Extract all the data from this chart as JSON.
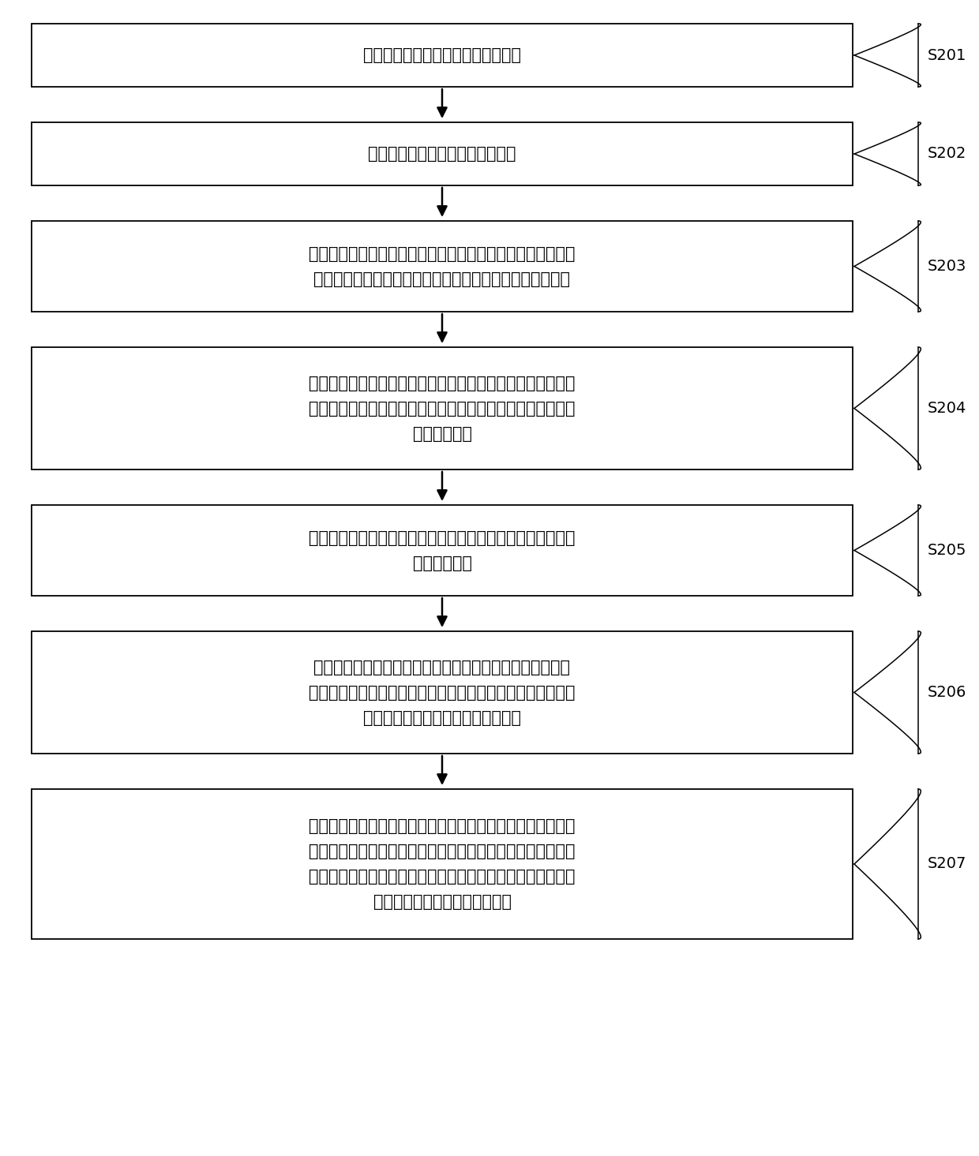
{
  "bg_color": "#ffffff",
  "box_border_color": "#000000",
  "box_fill_color": "#ffffff",
  "text_color": "#000000",
  "arrow_color": "#000000",
  "label_color": "#000000",
  "font_size": 15,
  "label_font_size": 14,
  "boxes": [
    {
      "id": "S201",
      "label": "S201",
      "lines": [
        "获取地层参数、完井参数及施工参数"
      ],
      "n_lines": 1
    },
    {
      "id": "S202",
      "label": "S202",
      "lines": [
        "建立二氧化碳的物性参数计算模型"
      ],
      "n_lines": 1
    },
    {
      "id": "S203",
      "label": "S203",
      "lines": [
        "建立二氧化碳的井筒压力计算模型，该井筒压力计算模型包括",
        "井筒内压力计算方程及二氧化碳流过喷嘴后的压力计算方程"
      ],
      "n_lines": 2
    },
    {
      "id": "S204",
      "label": "S204",
      "lines": [
        "建立二氧化碳的井筒温度计算模型，该井筒压力计算模型包括",
        "井筒内温度计算方程、二氧化碳流过喷嘴后的温度计算方程及",
        "温度混合方程"
      ],
      "n_lines": 3
    },
    {
      "id": "S205",
      "label": "S205",
      "lines": [
        "对井筒内压力计算方程和井筒内压力计算方程进行离散，得到",
        "数値离散模型"
      ],
      "n_lines": 2
    },
    {
      "id": "S206",
      "label": "S206",
      "lines": [
        "基于地层参数、完井参数及施工参数，结合物性参数计算模",
        "型、数値离散模型，计算不同施工参数下井筒内自上至下最后",
        "一个节点处的二氧化碳的温度和压力"
      ],
      "n_lines": 3
    },
    {
      "id": "S207",
      "label": "S207",
      "lines": [
        "根据最后一个节点处的二氧化碳的温度和压力，二氧化碳流过",
        "喷嘴后的压力计算方程、二氧化碳流过喷嘴后的温度计算方程",
        "及温度混合方程，计算不同施工参数下喷射点处二氧化碳的温",
        "度和压力，以优化所述施工参数"
      ],
      "n_lines": 4
    }
  ]
}
